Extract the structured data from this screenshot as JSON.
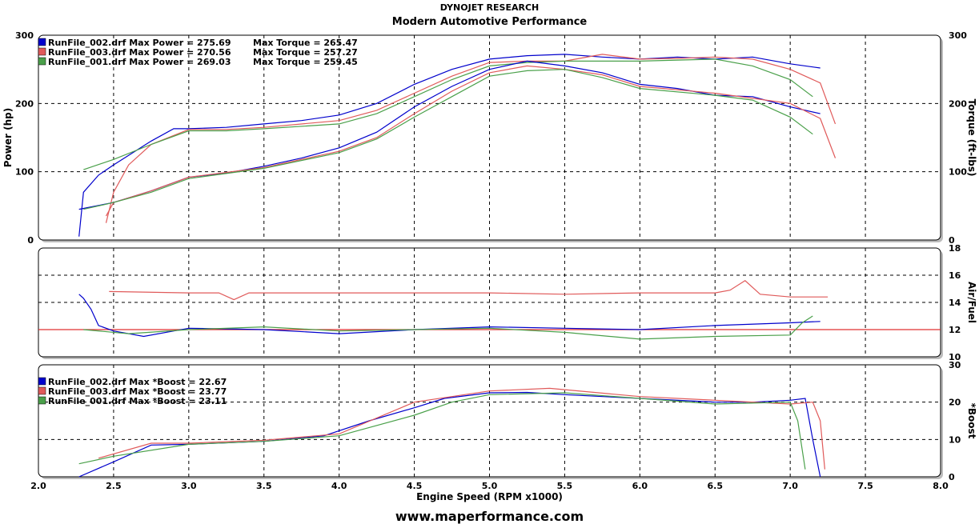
{
  "header": {
    "line1": "DYNOJET RESEARCH",
    "line2": "Modern Automotive Performance"
  },
  "footer": "www.maperformance.com",
  "colors": {
    "run_002": "#0000cc",
    "run_003": "#e05a5a",
    "run_001": "#4aa04a",
    "reference": "#e03030"
  },
  "chart_data": [
    {
      "type": "line",
      "panel": "power-torque",
      "xlabel": "Engine Speed (RPM x1000)",
      "ylabel": "Power (hp)",
      "y2label": "Torque (ft-lbs)",
      "xlim": [
        2.0,
        8.0
      ],
      "ylim": [
        0,
        300
      ],
      "y2lim": [
        0,
        300
      ],
      "x_ticks": [
        "2.0",
        "2.5",
        "3.0",
        "3.5",
        "4.0",
        "4.5",
        "5.0",
        "5.5",
        "6.0",
        "6.5",
        "7.0",
        "7.5",
        "8.0"
      ],
      "y_ticks": [
        "0",
        "100",
        "200",
        "300"
      ],
      "y2_ticks": [
        "0",
        "100",
        "200",
        "300"
      ],
      "grid": true,
      "legend_position": "top-left",
      "legend": [
        {
          "run": "run_002",
          "text": "RunFile_002.drf Max Power = 275.69",
          "text2": "Max Torque = 265.47"
        },
        {
          "run": "run_003",
          "text": "RunFile_003.drf Max Power = 270.56",
          "text2": "Max Torque = 257.27"
        },
        {
          "run": "run_001",
          "text": "RunFile_001.drf Max Power = 269.03",
          "text2": "Max Torque = 259.45"
        }
      ],
      "series": [
        {
          "name": "RunFile_002.drf Power",
          "run": "run_002",
          "x": [
            2.27,
            2.3,
            2.4,
            2.5,
            2.75,
            2.9,
            3.0,
            3.25,
            3.5,
            3.75,
            4.0,
            4.25,
            4.5,
            4.75,
            5.0,
            5.25,
            5.5,
            5.75,
            6.0,
            6.25,
            6.5,
            6.75,
            7.0,
            7.2
          ],
          "y": [
            5,
            70,
            95,
            110,
            145,
            163,
            163,
            165,
            170,
            175,
            183,
            200,
            228,
            250,
            265,
            270,
            272,
            268,
            265,
            268,
            265,
            268,
            258,
            252
          ]
        },
        {
          "name": "RunFile_003.drf Power",
          "run": "run_003",
          "x": [
            2.45,
            2.5,
            2.6,
            2.75,
            3.0,
            3.25,
            3.5,
            4.0,
            4.25,
            4.5,
            4.75,
            5.0,
            5.25,
            5.5,
            5.75,
            6.0,
            6.25,
            6.5,
            6.75,
            7.0,
            7.2,
            7.3
          ],
          "y": [
            25,
            70,
            110,
            140,
            162,
            162,
            165,
            175,
            190,
            215,
            240,
            260,
            262,
            262,
            272,
            265,
            266,
            268,
            265,
            250,
            230,
            170
          ]
        },
        {
          "name": "RunFile_001.drf Power",
          "run": "run_001",
          "x": [
            2.3,
            2.5,
            2.75,
            3.0,
            3.25,
            3.5,
            4.0,
            4.25,
            4.5,
            4.75,
            5.0,
            5.25,
            5.5,
            6.0,
            6.5,
            6.75,
            7.0,
            7.15
          ],
          "y": [
            103,
            118,
            140,
            160,
            160,
            163,
            170,
            185,
            210,
            235,
            255,
            260,
            262,
            262,
            265,
            255,
            235,
            210
          ]
        },
        {
          "name": "RunFile_002.drf Torque",
          "run": "run_002",
          "x": [
            2.27,
            2.5,
            2.75,
            3.0,
            3.25,
            3.5,
            3.75,
            4.0,
            4.25,
            4.5,
            4.75,
            5.0,
            5.25,
            5.5,
            5.75,
            6.0,
            6.25,
            6.5,
            6.75,
            7.0,
            7.2
          ],
          "y": [
            45,
            55,
            72,
            92,
            98,
            108,
            120,
            135,
            158,
            195,
            225,
            250,
            262,
            255,
            245,
            228,
            222,
            212,
            210,
            195,
            185
          ]
        },
        {
          "name": "RunFile_003.drf Torque",
          "run": "run_003",
          "x": [
            2.45,
            2.5,
            2.75,
            3.0,
            3.5,
            4.0,
            4.25,
            4.5,
            4.75,
            5.0,
            5.25,
            5.5,
            5.75,
            6.0,
            6.5,
            7.0,
            7.2,
            7.3
          ],
          "y": [
            35,
            55,
            72,
            92,
            106,
            130,
            150,
            185,
            218,
            245,
            255,
            250,
            242,
            225,
            215,
            200,
            178,
            120
          ]
        },
        {
          "name": "RunFile_001.drf Torque",
          "run": "run_001",
          "x": [
            2.3,
            2.5,
            2.75,
            3.0,
            3.5,
            4.0,
            4.25,
            4.5,
            4.75,
            5.0,
            5.25,
            5.5,
            5.75,
            6.0,
            6.5,
            6.75,
            7.0,
            7.15
          ],
          "y": [
            45,
            55,
            70,
            90,
            105,
            128,
            148,
            180,
            210,
            240,
            248,
            250,
            238,
            222,
            212,
            205,
            180,
            155
          ]
        }
      ]
    },
    {
      "type": "line",
      "panel": "air-fuel",
      "y2label": "Air/Fuel",
      "xlim": [
        2.0,
        8.0
      ],
      "y2lim": [
        10,
        18
      ],
      "y2_ticks": [
        "10",
        "12",
        "14",
        "16",
        "18"
      ],
      "grid": true,
      "reference_line": 12,
      "series": [
        {
          "run": "run_002",
          "x": [
            2.27,
            2.3,
            2.35,
            2.4,
            2.5,
            2.7,
            3.0,
            3.5,
            4.0,
            4.5,
            5.0,
            5.5,
            6.0,
            6.5,
            7.0,
            7.2
          ],
          "y": [
            14.6,
            14.3,
            13.5,
            12.3,
            11.9,
            11.5,
            12.1,
            12.0,
            11.7,
            12.0,
            12.2,
            12.1,
            12.0,
            12.3,
            12.5,
            12.6
          ]
        },
        {
          "run": "run_003",
          "x": [
            2.47,
            3.0,
            3.2,
            3.3,
            3.4,
            4.0,
            5.0,
            5.5,
            6.0,
            6.5,
            6.6,
            6.7,
            6.8,
            7.0,
            7.25
          ],
          "y": [
            14.8,
            14.7,
            14.7,
            14.2,
            14.7,
            14.7,
            14.7,
            14.6,
            14.7,
            14.7,
            14.9,
            15.6,
            14.6,
            14.4,
            14.4
          ]
        },
        {
          "run": "run_001",
          "x": [
            2.3,
            2.6,
            3.0,
            3.5,
            4.0,
            4.5,
            5.0,
            5.5,
            6.0,
            6.5,
            7.0,
            7.08,
            7.15
          ],
          "y": [
            12.0,
            11.7,
            12.0,
            12.2,
            11.9,
            12.0,
            12.1,
            11.8,
            11.3,
            11.5,
            11.6,
            12.5,
            13.0
          ]
        }
      ]
    },
    {
      "type": "line",
      "panel": "boost",
      "y2label": "*Boost",
      "xlim": [
        2.0,
        8.0
      ],
      "y2lim": [
        0,
        30
      ],
      "y2_ticks": [
        "0",
        "10",
        "20",
        "30"
      ],
      "grid": true,
      "legend_position": "top-left",
      "legend": [
        {
          "run": "run_002",
          "text": "RunFile_002.drf Max *Boost = 22.67"
        },
        {
          "run": "run_003",
          "text": "RunFile_003.drf Max *Boost = 23.77"
        },
        {
          "run": "run_001",
          "text": "RunFile_001.drf Max *Boost = 23.11"
        }
      ],
      "series": [
        {
          "run": "run_002",
          "x": [
            2.27,
            2.5,
            2.75,
            3.0,
            3.5,
            3.9,
            4.2,
            4.5,
            4.7,
            5.0,
            5.25,
            5.5,
            6.0,
            6.5,
            6.75,
            7.0,
            7.1,
            7.15,
            7.2
          ],
          "y": [
            0,
            4,
            8.5,
            8.7,
            9.5,
            11,
            15,
            18.5,
            21,
            22.5,
            22.6,
            22,
            21,
            20,
            20,
            20.5,
            21,
            10,
            0
          ]
        },
        {
          "run": "run_003",
          "x": [
            2.4,
            2.75,
            3.0,
            3.5,
            4.0,
            4.5,
            5.0,
            5.4,
            6.0,
            6.5,
            7.0,
            7.15,
            7.2,
            7.23
          ],
          "y": [
            5,
            9,
            9,
            9.8,
            11.5,
            20,
            23,
            23.7,
            21.5,
            20.5,
            19.5,
            20,
            15,
            2
          ]
        },
        {
          "run": "run_001",
          "x": [
            2.27,
            2.5,
            3.0,
            3.5,
            4.0,
            4.5,
            4.75,
            5.0,
            5.5,
            6.0,
            6.5,
            7.0,
            7.05,
            7.1
          ],
          "y": [
            3.5,
            5.5,
            8.7,
            9.5,
            11,
            16.5,
            20,
            22,
            22.5,
            21,
            19.5,
            20,
            15,
            2
          ]
        }
      ]
    }
  ]
}
